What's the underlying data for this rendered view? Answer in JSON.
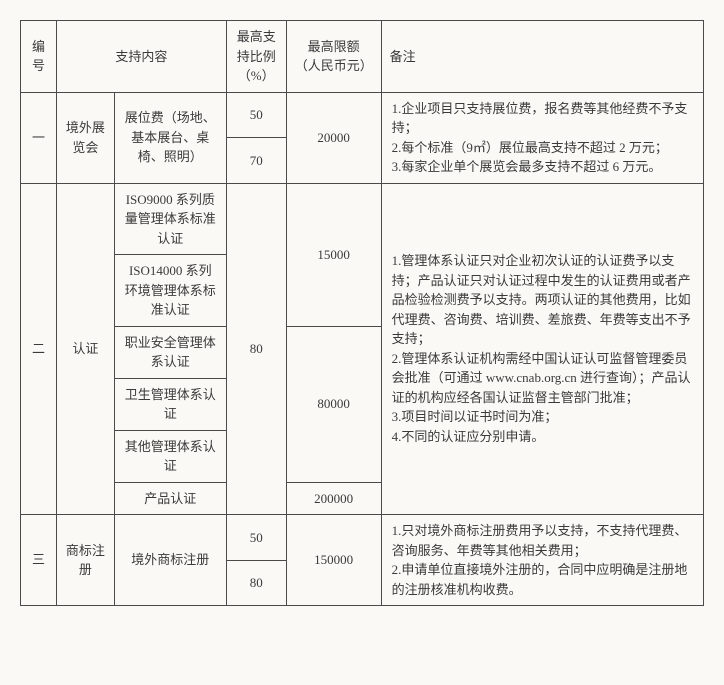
{
  "headers": {
    "no": "编号",
    "content": "支持内容",
    "ratio": "最高支持比例（%）",
    "limit": "最高限额（人民币元）",
    "note": "备注"
  },
  "rows": {
    "r1": {
      "no": "一",
      "cat": "境外展览会",
      "item": "展位费（场地、基本展台、桌椅、照明）",
      "ratio1": "50",
      "ratio2": "70",
      "limit": "20000",
      "note": "1.企业项目只支持展位费，报名费等其他经费不予支持；\n2.每个标准（9㎡）展位最高支持不超过 2 万元；\n3.每家企业单个展览会最多支持不超过 6 万元。"
    },
    "r2": {
      "no": "二",
      "cat": "认证",
      "item1": "ISO9000 系列质量管理体系标准认证",
      "item2": "ISO14000 系列环境管理体系标准认证",
      "item3": "职业安全管理体系认证",
      "item4": "卫生管理体系认证",
      "item5": "其他管理体系认证",
      "item6": "产品认证",
      "ratio": "80",
      "limit1": "15000",
      "limit2": "80000",
      "limit3": "200000",
      "note": "1.管理体系认证只对企业初次认证的认证费予以支持；产品认证只对认证过程中发生的认证费用或者产品检验检测费予以支持。两项认证的其他费用，比如代理费、咨询费、培训费、差旅费、年费等支出不予支持；\n2.管理体系认证机构需经中国认证认可监督管理委员会批准（可通过 www.cnab.org.cn 进行查询）；产品认证的机构应经各国认证监督主管部门批准；\n3.项目时间以证书时间为准；\n4.不同的认证应分别申请。"
    },
    "r3": {
      "no": "三",
      "cat": "商标注册",
      "item": "境外商标注册",
      "ratio1": "50",
      "ratio2": "80",
      "limit": "150000",
      "note": "1.只对境外商标注册费用予以支持，不支持代理费、咨询服务、年费等其他相关费用；\n2.申请单位直接境外注册的，合同中应明确是注册地的注册核准机构收费。"
    }
  }
}
